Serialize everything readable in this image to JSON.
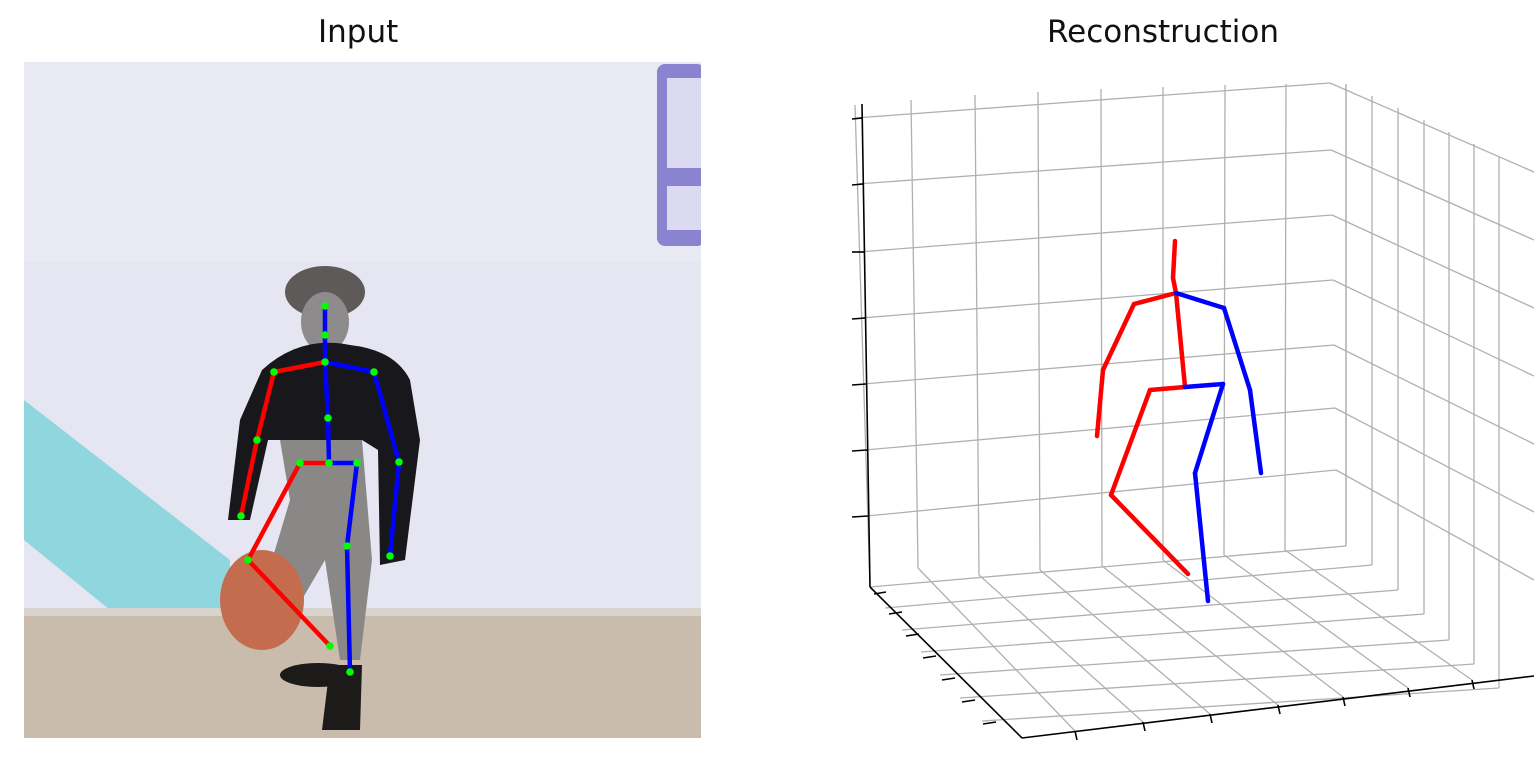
{
  "panels": {
    "input": {
      "title": "Input"
    },
    "reconstruction": {
      "title": "Reconstruction"
    }
  },
  "colors": {
    "left_limb": "#ff0000",
    "right_limb": "#0000ff",
    "joint": "#00ff00",
    "grid": "#b0b0b0",
    "axis": "#000000",
    "background_wall": "#e4e5f1",
    "floor": "#cbbfb0",
    "cyan_stripe": "#8fd6df",
    "sign": "#8a83cf"
  },
  "icons": {
    "figure": "person-photo",
    "sign": "purple-sign-logo"
  }
}
